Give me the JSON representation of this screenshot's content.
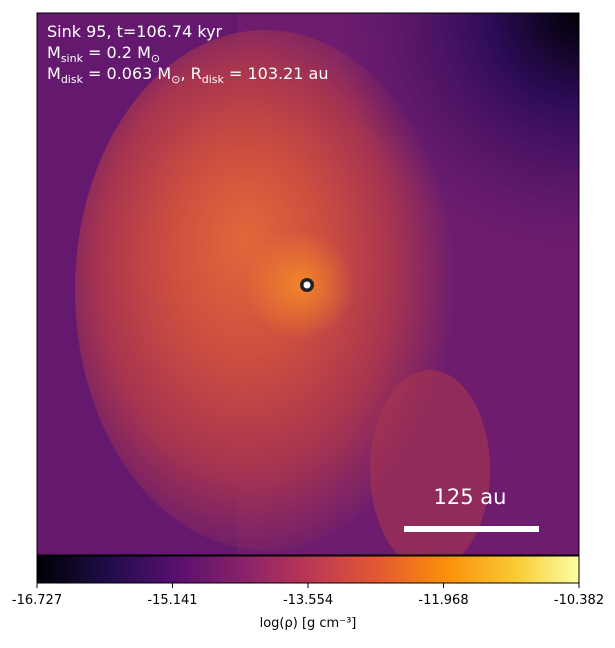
{
  "chart_data": {
    "type": "image",
    "annotations": [
      [
        "Sink 95, t=106.74 kyr"
      ],
      [
        "M",
        "sink",
        " = 0.2 M",
        "⊙"
      ],
      [
        "M",
        "disk",
        " = 0.063 M",
        "⊙",
        ", R",
        "disk",
        " = 103.21 au"
      ]
    ],
    "scale_bar_label": "125 au",
    "colorbar_label": "log(ρ) [g cm⁻³]",
    "colormap": "inferno",
    "clim": [
      -16.727,
      -10.382
    ],
    "colorbar_ticks": [
      -16.727,
      -15.141,
      -13.554,
      -11.968,
      -10.382
    ]
  }
}
